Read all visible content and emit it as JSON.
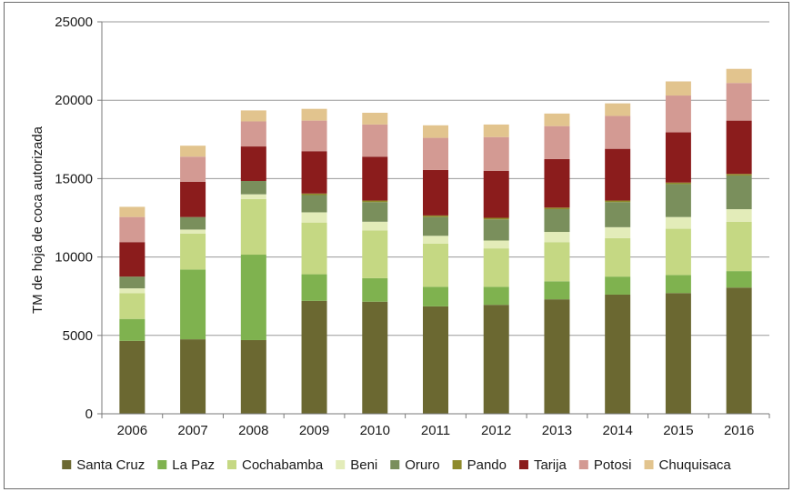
{
  "chart_data": {
    "type": "bar",
    "stacked": true,
    "title": "",
    "xlabel": "",
    "ylabel": "TM de hoja de coca autorizada",
    "ylim": [
      0,
      25000
    ],
    "yticks": [
      0,
      5000,
      10000,
      15000,
      20000,
      25000
    ],
    "grid": true,
    "legend_position": "bottom",
    "categories": [
      "2006",
      "2007",
      "2008",
      "2009",
      "2010",
      "2011",
      "2012",
      "2013",
      "2014",
      "2015",
      "2016"
    ],
    "series": [
      {
        "name": "Santa Cruz",
        "color": "#6b6831",
        "values": [
          4650,
          4750,
          4700,
          7200,
          7150,
          6850,
          6950,
          7300,
          7600,
          7700,
          8050
        ]
      },
      {
        "name": "La Paz",
        "color": "#7fb24f",
        "values": [
          1400,
          4450,
          5450,
          1700,
          1500,
          1250,
          1150,
          1150,
          1150,
          1150,
          1050
        ]
      },
      {
        "name": "Cochabamba",
        "color": "#c5d883",
        "values": [
          1650,
          2300,
          3550,
          3300,
          3050,
          2750,
          2450,
          2500,
          2450,
          2950,
          3150
        ]
      },
      {
        "name": "Beni",
        "color": "#e3ecb9",
        "values": [
          300,
          250,
          300,
          650,
          550,
          500,
          500,
          650,
          700,
          750,
          800
        ]
      },
      {
        "name": "Oruro",
        "color": "#7a8f5c",
        "values": [
          750,
          800,
          850,
          1100,
          1250,
          1200,
          1350,
          1450,
          1600,
          2100,
          2150
        ]
      },
      {
        "name": "Pando",
        "color": "#8e8a2b",
        "values": [
          0,
          0,
          0,
          100,
          100,
          100,
          100,
          100,
          100,
          100,
          100
        ]
      },
      {
        "name": "Tarija",
        "color": "#8b1c1c",
        "values": [
          2200,
          2250,
          2200,
          2700,
          2800,
          2900,
          3000,
          3100,
          3300,
          3200,
          3400
        ]
      },
      {
        "name": "Potosi",
        "color": "#d39a93",
        "values": [
          1600,
          1600,
          1600,
          1950,
          2050,
          2050,
          2150,
          2100,
          2100,
          2350,
          2400
        ]
      },
      {
        "name": "Chuquisaca",
        "color": "#e2c48e",
        "values": [
          650,
          700,
          700,
          750,
          750,
          800,
          800,
          800,
          800,
          900,
          900
        ]
      }
    ]
  }
}
